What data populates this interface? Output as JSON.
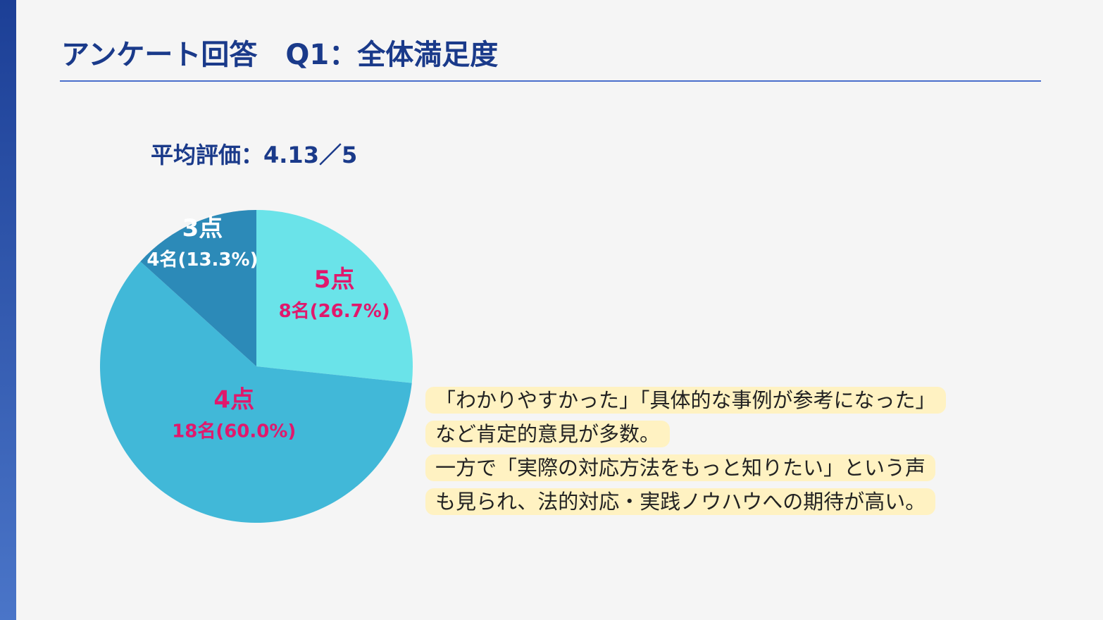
{
  "chart_data": {
    "type": "pie",
    "title": "アンケート回答　Q1：全体満足度",
    "subtitle": "平均評価：4.13／5",
    "categories": [
      "5点",
      "4点",
      "3点"
    ],
    "values": [
      26.7,
      60.0,
      13.3
    ],
    "value_labels": [
      "8名(26.7%)",
      "18名(60.0%)",
      "4名(13.3%)"
    ],
    "colors": [
      "#6ae3e9",
      "#41b8d8",
      "#2c8ab8"
    ],
    "label_colors": [
      "#e0186c",
      "#e0186c",
      "#ffffff"
    ],
    "annotation": [
      "「わかりやすかった」「具体的な事例が参考になった」",
      "など肯定的意見が多数。",
      "一方で「実際の対応方法をもっと知りたい」という声",
      "も見られ、法的対応・実践ノウハウへの期待が高い。"
    ]
  }
}
